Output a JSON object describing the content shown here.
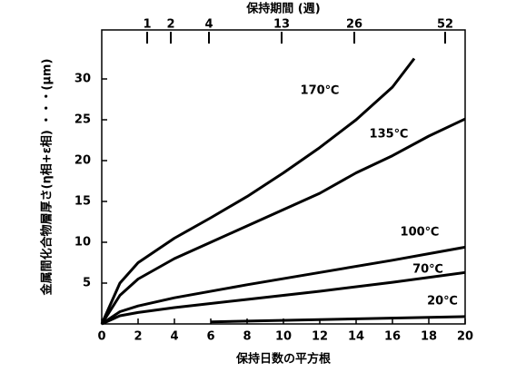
{
  "chart_data": {
    "type": "line",
    "x_label": "保持日数の平方根",
    "y_label": "金属間化合物層厚さ(η相+ε相) ・・・(μm)",
    "x2_label": "保持期間 (週)",
    "xlim": [
      0,
      20
    ],
    "ylim": [
      0,
      36
    ],
    "xticks": [
      0,
      2,
      4,
      6,
      8,
      10,
      12,
      14,
      16,
      18,
      20
    ],
    "yticks": [
      5,
      10,
      15,
      20,
      25,
      30
    ],
    "x2ticks": [
      {
        "value": 2.5,
        "label": "1"
      },
      {
        "value": 3.8,
        "label": "2"
      },
      {
        "value": 5.9,
        "label": "4"
      },
      {
        "value": 9.9,
        "label": "13"
      },
      {
        "value": 13.9,
        "label": "26"
      },
      {
        "value": 18.9,
        "label": "52"
      }
    ],
    "series": [
      {
        "name": "170℃",
        "color": "#000000",
        "x": [
          0,
          1,
          2,
          4,
          6,
          8,
          10,
          12,
          14,
          16,
          17.2
        ],
        "values": [
          0,
          5,
          7.5,
          10.5,
          13,
          15.6,
          18.5,
          21.6,
          25,
          29,
          32.5
        ]
      },
      {
        "name": "135℃",
        "color": "#000000",
        "x": [
          0,
          1,
          2,
          4,
          6,
          8,
          10,
          12,
          14,
          16,
          18,
          20
        ],
        "values": [
          0,
          3.5,
          5.5,
          8,
          10,
          12,
          14,
          16,
          18.5,
          20.6,
          23,
          25.1
        ]
      },
      {
        "name": "100℃",
        "color": "#000000",
        "x": [
          0,
          1,
          2,
          4,
          8,
          12,
          16,
          20
        ],
        "values": [
          0,
          1.5,
          2.2,
          3.2,
          4.8,
          6.3,
          7.8,
          9.4
        ]
      },
      {
        "name": "70℃",
        "color": "#000000",
        "x": [
          0,
          1,
          2,
          4,
          8,
          12,
          16,
          20
        ],
        "values": [
          0,
          1,
          1.4,
          2,
          3,
          4,
          5.1,
          6.3
        ]
      },
      {
        "name": "20℃",
        "color": "#000000",
        "x": [
          6,
          20
        ],
        "values": [
          0.25,
          0.9
        ]
      }
    ]
  }
}
